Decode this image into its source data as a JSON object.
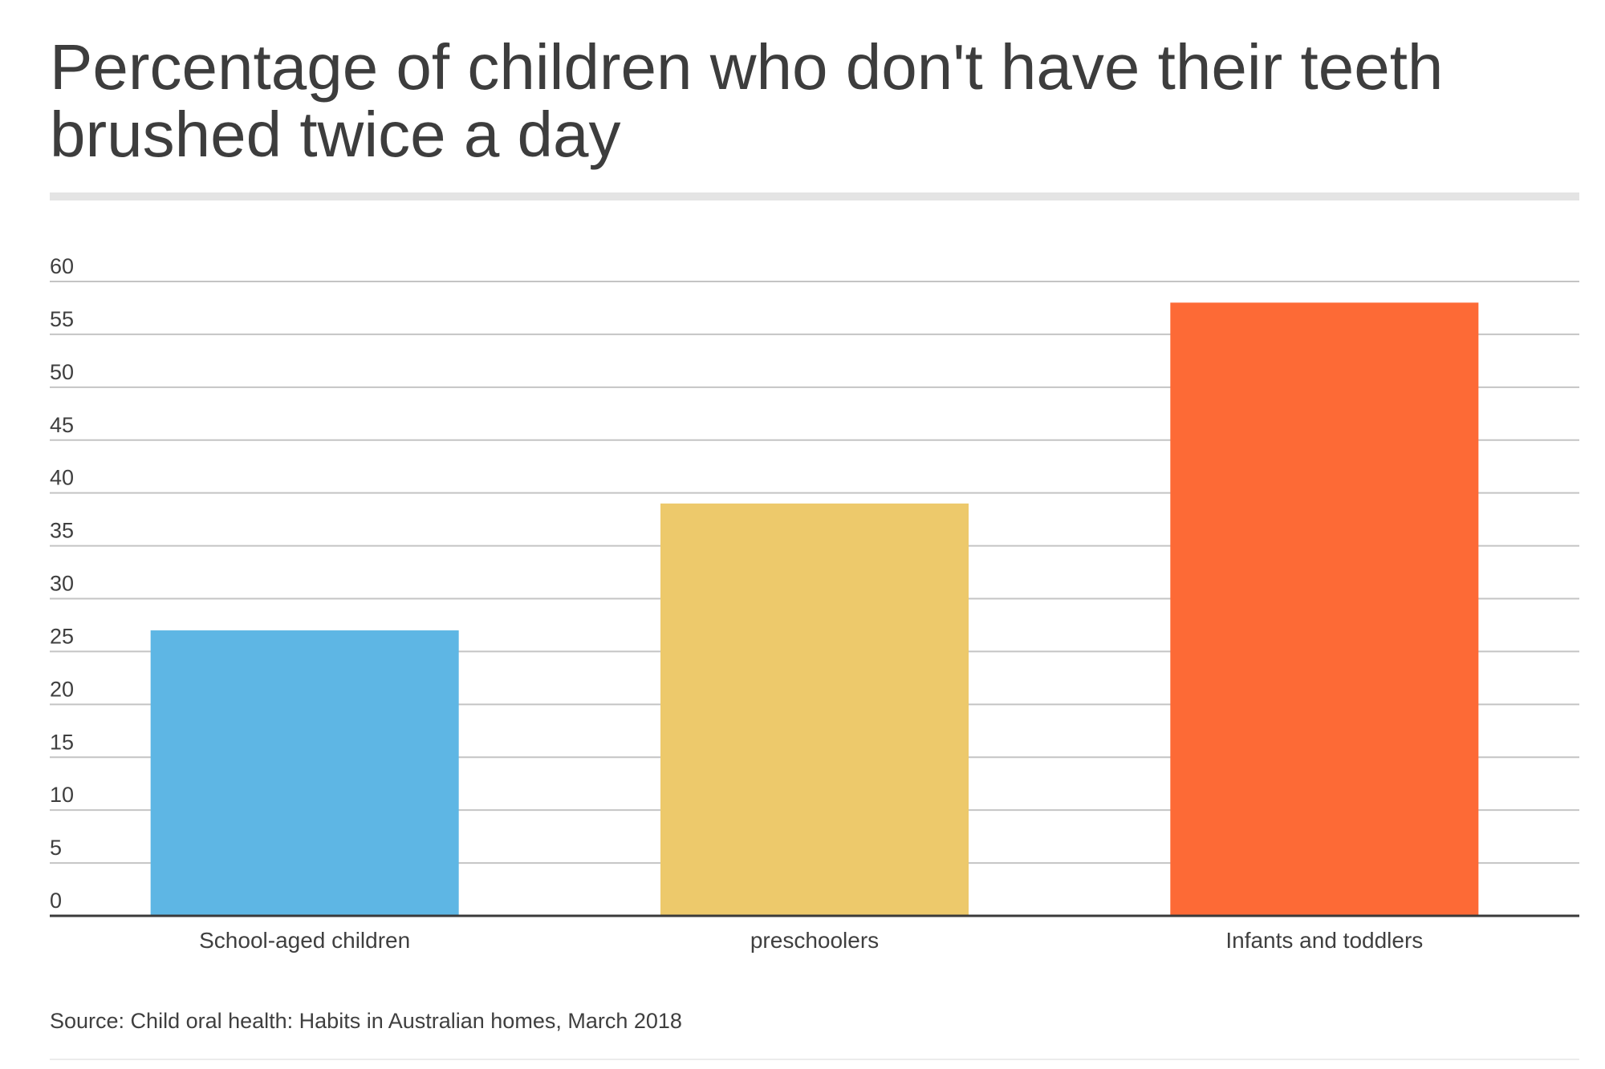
{
  "chart_data": {
    "type": "bar",
    "title": "Percentage of children who don't have their teeth brushed twice a day",
    "categories": [
      "School-aged children",
      "preschoolers",
      "Infants and toddlers"
    ],
    "values": [
      27,
      39,
      58
    ],
    "colors": [
      "#5eb6e4",
      "#edc96b",
      "#fd6a36"
    ],
    "ylim": [
      0,
      60
    ],
    "yticks": [
      0,
      5,
      10,
      15,
      20,
      25,
      30,
      35,
      40,
      45,
      50,
      55,
      60
    ],
    "xlabel": "",
    "ylabel": "",
    "grid": true,
    "legend": "none"
  },
  "source": "Source: Child oral health: Habits in Australian homes, March 2018"
}
